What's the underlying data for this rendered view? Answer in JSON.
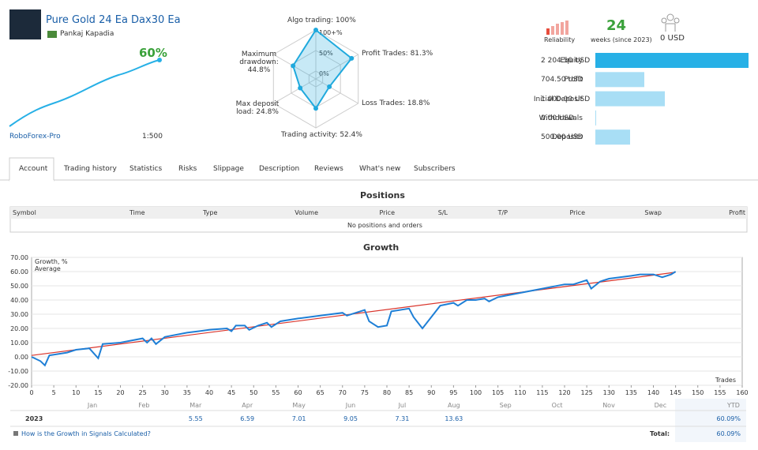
{
  "header": {
    "title": "Pure Gold 24 Ea Dax30 Ea",
    "author": "Pankaj Kapadia",
    "growth": "60%",
    "broker": "RoboForex-Pro",
    "leverage": "1:500"
  },
  "radar": {
    "type": "radar",
    "axes": [
      {
        "label": "Algo trading:",
        "value": 100,
        "value_label": "100%"
      },
      {
        "label": "Profit Trades:",
        "value": 81.3,
        "value_label": "81.3%"
      },
      {
        "label": "Loss Trades:",
        "value": 18.8,
        "value_label": "18.8%"
      },
      {
        "label": "Trading activity:",
        "value": 52.4,
        "value_label": "52.4%"
      },
      {
        "label": "Max deposit load:",
        "value": 24.8,
        "value_label": "24.8%"
      },
      {
        "label": "Maximum drawdown:",
        "value": 44.8,
        "value_label": "44.8%"
      }
    ],
    "rings": [
      {
        "value": 100,
        "label": "100+%"
      },
      {
        "value": 50,
        "label": "50%"
      },
      {
        "value": 0,
        "label": "0%"
      }
    ],
    "color": "#1fa9dd"
  },
  "stats": {
    "reliability": "Reliability",
    "weeks": "24",
    "weeks_label": "weeks (since 2023)",
    "subscribers": "0 USD"
  },
  "balance": {
    "type": "bar",
    "color": "#a8def5",
    "highlight": "#27b0e6",
    "items": [
      {
        "name": "Equity",
        "value": 2204.5,
        "value_label": "2 204.50 USD"
      },
      {
        "name": "Profit",
        "value": 704.5,
        "value_label": "704.50 USD"
      },
      {
        "name": "Initial Deposit",
        "value": 1000,
        "value_label": "1 000.00 USD"
      },
      {
        "name": "Withdrawals",
        "value": 0,
        "value_label": "0.00 USD"
      },
      {
        "name": "Deposits",
        "value": 500,
        "value_label": "500.00 USD"
      }
    ]
  },
  "tabs": [
    "Account",
    "Trading history",
    "Statistics",
    "Risks",
    "Slippage",
    "Description",
    "Reviews",
    "What's new",
    "Subscribers"
  ],
  "positions": {
    "title": "Positions",
    "columns": [
      "Symbol",
      "Time",
      "Type",
      "Volume",
      "Price",
      "S/L",
      "T/P",
      "Price",
      "Swap",
      "Profit"
    ],
    "empty": "No positions and orders"
  },
  "chart_data": {
    "type": "line",
    "title": "Growth",
    "x_label": "Trades",
    "x": [
      0,
      2,
      3,
      4,
      8,
      10,
      13,
      15,
      16,
      20,
      25,
      26,
      27,
      28,
      30,
      35,
      40,
      44,
      45,
      46,
      48,
      49,
      51,
      53,
      54,
      56,
      60,
      65,
      70,
      71,
      75,
      76,
      78,
      80,
      81,
      85,
      86,
      88,
      90,
      92,
      95,
      96,
      98,
      100,
      102,
      103,
      105,
      110,
      115,
      120,
      122,
      125,
      126,
      128,
      130,
      135,
      137,
      140,
      142,
      144,
      145
    ],
    "series": [
      {
        "name": "Growth, %",
        "color": "#1e7fd6",
        "values": [
          0,
          -3,
          -6,
          1,
          3,
          5,
          6,
          -1,
          9,
          10,
          13,
          10,
          13,
          9,
          14,
          17,
          19,
          20,
          18,
          22,
          22,
          19,
          22,
          24,
          21,
          25,
          27,
          29,
          31,
          29,
          33,
          25,
          21,
          22,
          32,
          34,
          28,
          20,
          28,
          36,
          38,
          36,
          40,
          40,
          41,
          39,
          42,
          45,
          48,
          51,
          51,
          54,
          48,
          53,
          55,
          57,
          58,
          58,
          56,
          58,
          60
        ]
      }
    ],
    "average": {
      "name": "Average",
      "color": "#d9342b",
      "x": [
        0,
        145
      ],
      "values": [
        1,
        59.5
      ]
    },
    "xlim": [
      0,
      160
    ],
    "ylim": [
      -20,
      70
    ],
    "xticks": [
      0,
      5,
      10,
      15,
      20,
      25,
      30,
      35,
      40,
      45,
      50,
      55,
      60,
      65,
      70,
      75,
      80,
      85,
      90,
      95,
      100,
      105,
      110,
      115,
      120,
      125,
      130,
      135,
      140,
      145,
      150,
      155,
      160
    ],
    "yticks": [
      {
        "value": 70,
        "label": "70.00"
      },
      {
        "value": 60,
        "label": "60.00"
      },
      {
        "value": 50,
        "label": "50.00"
      },
      {
        "value": 40,
        "label": "40.00"
      },
      {
        "value": 30,
        "label": "30.00"
      },
      {
        "value": 20,
        "label": "20.00"
      },
      {
        "value": 10,
        "label": "10.00"
      },
      {
        "value": 0,
        "label": "0.00"
      },
      {
        "value": -10,
        "label": "-10.00"
      },
      {
        "value": -20,
        "label": "-20.00"
      }
    ],
    "grid": true
  },
  "months": {
    "names": [
      "Jan",
      "Feb",
      "Mar",
      "Apr",
      "May",
      "Jun",
      "Jul",
      "Aug",
      "Sep",
      "Oct",
      "Nov",
      "Dec"
    ],
    "ytd_label": "YTD",
    "year": "2023",
    "values": [
      null,
      null,
      5.55,
      6.59,
      7.01,
      9.05,
      7.31,
      13.63,
      null,
      null,
      null,
      null
    ],
    "ytd": "60.09%"
  },
  "footer": {
    "link": "How is the Growth in Signals Calculated?",
    "total_label": "Total:",
    "total": "60.09%"
  }
}
